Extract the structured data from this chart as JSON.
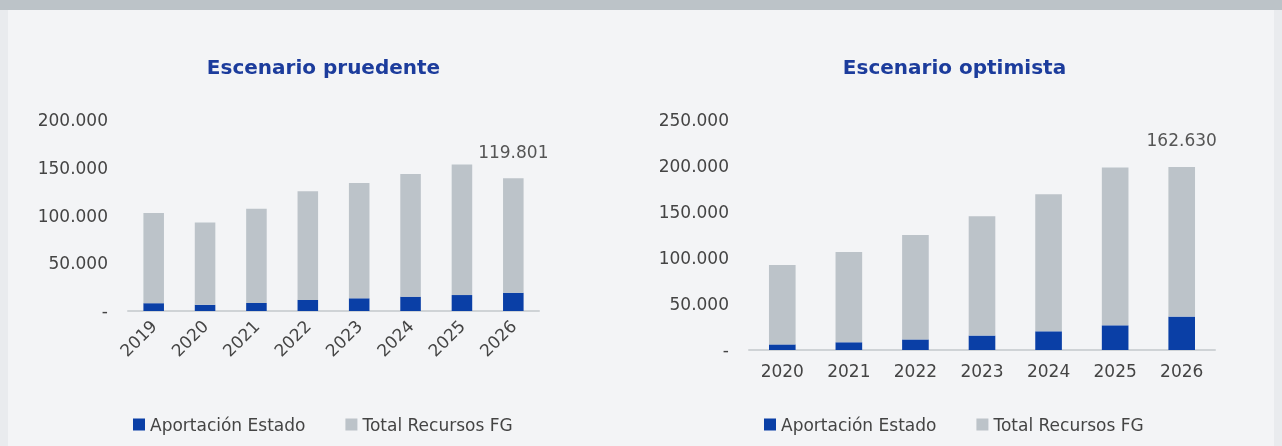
{
  "chart_data": [
    {
      "type": "bar",
      "title": "Escenario pruedente",
      "stacked": true,
      "categories": [
        "2019",
        "2020",
        "2021",
        "2022",
        "2023",
        "2024",
        "2025",
        "2026"
      ],
      "series": [
        {
          "name": "Aportación Estado",
          "color": "#0a3fa6",
          "values": [
            8200,
            6500,
            8500,
            11600,
            13300,
            15000,
            16700,
            19100
          ]
        },
        {
          "name": "Total Recursos FG",
          "color": "#bcc3c9",
          "values": [
            94300,
            86100,
            98500,
            113800,
            120700,
            128500,
            136800,
            119801
          ],
          "value_labels": [
            null,
            null,
            null,
            null,
            null,
            null,
            null,
            "119.801"
          ]
        }
      ],
      "ylim": [
        0,
        200000
      ],
      "yticks": [
        {
          "value": 0,
          "label": "-"
        },
        {
          "value": 50000,
          "label": "50.000"
        },
        {
          "value": 100000,
          "label": "100.000"
        },
        {
          "value": 150000,
          "label": "150.000"
        },
        {
          "value": 200000,
          "label": "200.000"
        }
      ],
      "grid": false,
      "legend": "bottom"
    },
    {
      "type": "bar",
      "title": "Escenario optimista",
      "stacked": true,
      "categories": [
        "2020",
        "2021",
        "2022",
        "2023",
        "2024",
        "2025",
        "2026"
      ],
      "series": [
        {
          "name": "Aportación Estado",
          "color": "#0a3fa6",
          "values": [
            6100,
            8400,
            11500,
            15700,
            20300,
            26800,
            36300
          ]
        },
        {
          "name": "Total Recursos FG",
          "color": "#bcc3c9",
          "values": [
            86400,
            98200,
            113500,
            129600,
            149000,
            171600,
            162630
          ],
          "value_labels": [
            null,
            null,
            null,
            null,
            null,
            null,
            "162.630"
          ]
        }
      ],
      "ylim": [
        0,
        250000
      ],
      "yticks": [
        {
          "value": 0,
          "label": "-"
        },
        {
          "value": 50000,
          "label": "50.000"
        },
        {
          "value": 100000,
          "label": "100.000"
        },
        {
          "value": 150000,
          "label": "150.000"
        },
        {
          "value": 200000,
          "label": "200.000"
        },
        {
          "value": 250000,
          "label": "250.000"
        }
      ],
      "grid": false,
      "legend": "bottom"
    }
  ]
}
